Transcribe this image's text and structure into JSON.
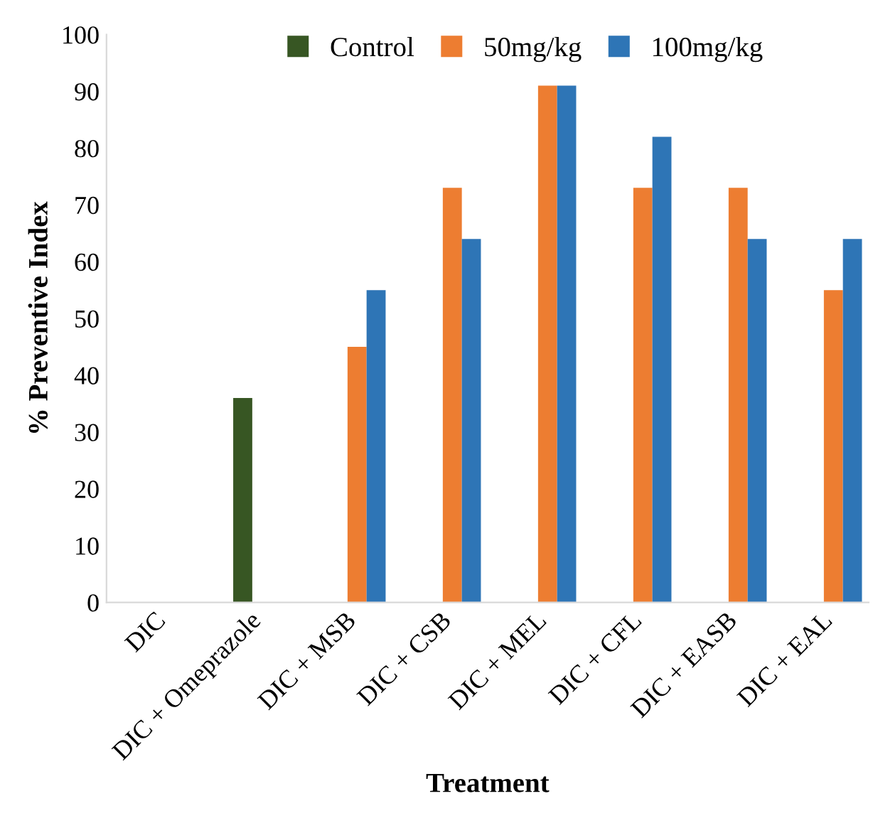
{
  "chart_data": {
    "type": "bar",
    "xlabel": "Treatment",
    "ylabel": "% Preventive Index",
    "categories": [
      "DIC",
      "DIC + Omeprazole",
      "DIC + MSB",
      "DIC + CSB",
      "DIC + MEL",
      "DIC + CFL",
      "DIC + EASB",
      "DIC + EAL"
    ],
    "series": [
      {
        "name": "Control",
        "color": "#375623",
        "values": [
          null,
          36,
          null,
          null,
          null,
          null,
          null,
          null
        ]
      },
      {
        "name": "50mg/kg",
        "color": "#ed7d31",
        "values": [
          null,
          null,
          45,
          73,
          91,
          73,
          73,
          55
        ]
      },
      {
        "name": "100mg/kg",
        "color": "#2e75b6",
        "values": [
          null,
          null,
          55,
          64,
          91,
          82,
          64,
          64
        ]
      }
    ],
    "ylim": [
      0,
      100
    ],
    "yticks": [
      0,
      10,
      20,
      30,
      40,
      50,
      60,
      70,
      80,
      90,
      100
    ],
    "grid": false,
    "legend": "top"
  }
}
